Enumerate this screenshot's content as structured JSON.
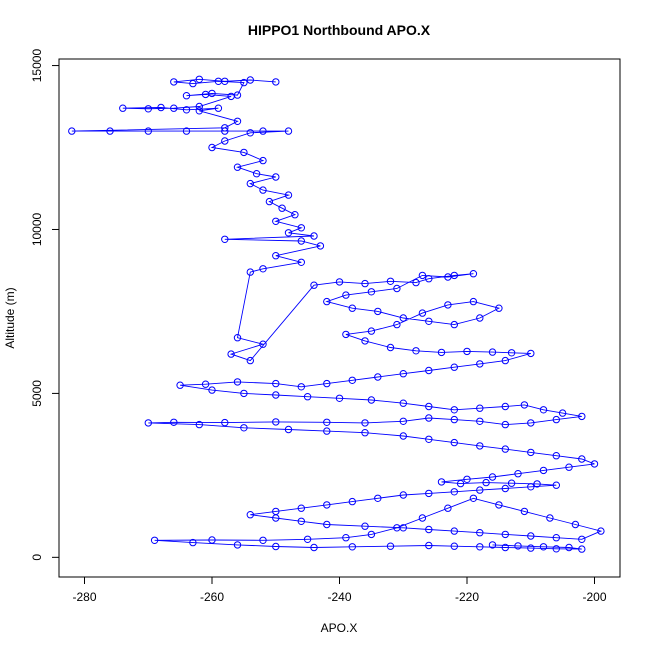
{
  "chart_data": {
    "type": "scatter",
    "title": "HIPPO1 Northbound APO.X",
    "xlabel": "APO.X",
    "ylabel": "Altitude (m)",
    "xlim": [
      -284,
      -196
    ],
    "ylim": [
      -600,
      15200
    ],
    "x_ticks": [
      -280,
      -260,
      -240,
      -220,
      -200
    ],
    "x_tick_labels": [
      "-280",
      "-260",
      "-240",
      "-220",
      "-200"
    ],
    "y_ticks": [
      0,
      5000,
      10000,
      15000
    ],
    "y_tick_labels": [
      "0",
      "5000",
      "10000",
      "15000"
    ],
    "grid": false,
    "legend": "none",
    "marker": "open-circle",
    "connect_points": true,
    "series": [
      {
        "color": "#0000ff",
        "points": [
          [
            -250.0,
            14500
          ],
          [
            -254.0,
            14560
          ],
          [
            -258.0,
            14520
          ],
          [
            -262.0,
            14580
          ],
          [
            -266.0,
            14500
          ],
          [
            -263.0,
            14450
          ],
          [
            -259.0,
            14520
          ],
          [
            -255.0,
            14480
          ],
          [
            -256.0,
            14100
          ],
          [
            -260.0,
            14150
          ],
          [
            -264.0,
            14080
          ],
          [
            -261.0,
            14120
          ],
          [
            -257.0,
            14060
          ],
          [
            -262.0,
            13750
          ],
          [
            -266.0,
            13700
          ],
          [
            -270.0,
            13680
          ],
          [
            -274.0,
            13700
          ],
          [
            -268.0,
            13720
          ],
          [
            -264.0,
            13650
          ],
          [
            -259.0,
            13700
          ],
          [
            -262.0,
            13620
          ],
          [
            -256.0,
            13300
          ],
          [
            -258.0,
            13100
          ],
          [
            -282.0,
            13000
          ],
          [
            -276.0,
            13000
          ],
          [
            -270.0,
            13000
          ],
          [
            -264.0,
            13000
          ],
          [
            -258.0,
            13000
          ],
          [
            -252.0,
            13000
          ],
          [
            -248.0,
            13000
          ],
          [
            -254.0,
            12950
          ],
          [
            -258.0,
            12700
          ],
          [
            -260.0,
            12500
          ],
          [
            -255.0,
            12350
          ],
          [
            -252.0,
            12100
          ],
          [
            -256.0,
            11900
          ],
          [
            -253.0,
            11700
          ],
          [
            -250.0,
            11600
          ],
          [
            -254.0,
            11400
          ],
          [
            -252.0,
            11200
          ],
          [
            -248.0,
            11050
          ],
          [
            -251.0,
            10850
          ],
          [
            -249.0,
            10650
          ],
          [
            -247.0,
            10450
          ],
          [
            -250.0,
            10250
          ],
          [
            -246.0,
            10050
          ],
          [
            -248.0,
            9900
          ],
          [
            -244.0,
            9800
          ],
          [
            -258.0,
            9700
          ],
          [
            -246.0,
            9650
          ],
          [
            -243.0,
            9500
          ],
          [
            -250.0,
            9200
          ],
          [
            -246.0,
            9000
          ],
          [
            -252.0,
            8800
          ],
          [
            -254.0,
            8700
          ],
          [
            -256.0,
            6700
          ],
          [
            -252.0,
            6500
          ],
          [
            -257.0,
            6200
          ],
          [
            -254.0,
            6000
          ],
          [
            -244.0,
            8300
          ],
          [
            -240.0,
            8400
          ],
          [
            -236.0,
            8350
          ],
          [
            -232.0,
            8420
          ],
          [
            -228.0,
            8380
          ],
          [
            -226.0,
            8500
          ],
          [
            -222.0,
            8600
          ],
          [
            -219.0,
            8650
          ],
          [
            -223.0,
            8550
          ],
          [
            -227.0,
            8600
          ],
          [
            -231.0,
            8200
          ],
          [
            -235.0,
            8100
          ],
          [
            -239.0,
            8000
          ],
          [
            -242.0,
            7800
          ],
          [
            -238.0,
            7600
          ],
          [
            -234.0,
            7500
          ],
          [
            -230.0,
            7300
          ],
          [
            -226.0,
            7200
          ],
          [
            -222.0,
            7100
          ],
          [
            -218.0,
            7300
          ],
          [
            -215.0,
            7600
          ],
          [
            -219.0,
            7800
          ],
          [
            -223.0,
            7700
          ],
          [
            -227.0,
            7450
          ],
          [
            -231.0,
            7100
          ],
          [
            -235.0,
            6900
          ],
          [
            -239.0,
            6800
          ],
          [
            -236.0,
            6600
          ],
          [
            -232.0,
            6400
          ],
          [
            -228.0,
            6300
          ],
          [
            -224.0,
            6250
          ],
          [
            -220.0,
            6280
          ],
          [
            -216.0,
            6260
          ],
          [
            -213.0,
            6240
          ],
          [
            -210.0,
            6220
          ],
          [
            -214.0,
            6000
          ],
          [
            -218.0,
            5900
          ],
          [
            -222.0,
            5800
          ],
          [
            -226.0,
            5700
          ],
          [
            -230.0,
            5600
          ],
          [
            -234.0,
            5500
          ],
          [
            -238.0,
            5400
          ],
          [
            -242.0,
            5300
          ],
          [
            -246.0,
            5200
          ],
          [
            -250.0,
            5300
          ],
          [
            -256.0,
            5350
          ],
          [
            -261.0,
            5280
          ],
          [
            -265.0,
            5250
          ],
          [
            -260.0,
            5100
          ],
          [
            -255.0,
            5000
          ],
          [
            -250.0,
            4950
          ],
          [
            -245.0,
            4900
          ],
          [
            -240.0,
            4850
          ],
          [
            -235.0,
            4800
          ],
          [
            -230.0,
            4700
          ],
          [
            -226.0,
            4600
          ],
          [
            -222.0,
            4500
          ],
          [
            -218.0,
            4550
          ],
          [
            -214.0,
            4600
          ],
          [
            -211.0,
            4650
          ],
          [
            -208.0,
            4500
          ],
          [
            -205.0,
            4400
          ],
          [
            -202.0,
            4300
          ],
          [
            -206.0,
            4200
          ],
          [
            -210.0,
            4100
          ],
          [
            -214.0,
            4050
          ],
          [
            -218.0,
            4150
          ],
          [
            -222.0,
            4200
          ],
          [
            -226.0,
            4250
          ],
          [
            -230.0,
            4150
          ],
          [
            -236.0,
            4100
          ],
          [
            -242.0,
            4120
          ],
          [
            -250.0,
            4130
          ],
          [
            -258.0,
            4110
          ],
          [
            -266.0,
            4120
          ],
          [
            -270.0,
            4100
          ],
          [
            -262.0,
            4050
          ],
          [
            -255.0,
            3950
          ],
          [
            -248.0,
            3900
          ],
          [
            -242.0,
            3850
          ],
          [
            -236.0,
            3800
          ],
          [
            -230.0,
            3700
          ],
          [
            -226.0,
            3600
          ],
          [
            -222.0,
            3500
          ],
          [
            -218.0,
            3400
          ],
          [
            -214.0,
            3300
          ],
          [
            -210.0,
            3200
          ],
          [
            -206.0,
            3100
          ],
          [
            -202.0,
            3000
          ],
          [
            -200.0,
            2850
          ],
          [
            -204.0,
            2750
          ],
          [
            -208.0,
            2650
          ],
          [
            -212.0,
            2550
          ],
          [
            -216.0,
            2450
          ],
          [
            -220.0,
            2380
          ],
          [
            -224.0,
            2300
          ],
          [
            -221.0,
            2250
          ],
          [
            -217.0,
            2280
          ],
          [
            -213.0,
            2260
          ],
          [
            -209.0,
            2240
          ],
          [
            -206.0,
            2200
          ],
          [
            -210.0,
            2150
          ],
          [
            -214.0,
            2100
          ],
          [
            -218.0,
            2050
          ],
          [
            -222.0,
            2000
          ],
          [
            -226.0,
            1950
          ],
          [
            -230.0,
            1900
          ],
          [
            -234.0,
            1800
          ],
          [
            -238.0,
            1700
          ],
          [
            -242.0,
            1600
          ],
          [
            -246.0,
            1500
          ],
          [
            -250.0,
            1400
          ],
          [
            -254.0,
            1300
          ],
          [
            -250.0,
            1200
          ],
          [
            -246.0,
            1100
          ],
          [
            -242.0,
            1000
          ],
          [
            -236.0,
            950
          ],
          [
            -230.0,
            900
          ],
          [
            -226.0,
            850
          ],
          [
            -222.0,
            800
          ],
          [
            -218.0,
            750
          ],
          [
            -214.0,
            700
          ],
          [
            -210.0,
            650
          ],
          [
            -206.0,
            600
          ],
          [
            -202.0,
            550
          ],
          [
            -199.0,
            800
          ],
          [
            -203.0,
            1000
          ],
          [
            -207.0,
            1200
          ],
          [
            -211.0,
            1400
          ],
          [
            -215.0,
            1600
          ],
          [
            -219.0,
            1800
          ],
          [
            -223.0,
            1500
          ],
          [
            -227.0,
            1200
          ],
          [
            -231.0,
            900
          ],
          [
            -235.0,
            700
          ],
          [
            -239.0,
            600
          ],
          [
            -245.0,
            550
          ],
          [
            -252.0,
            520
          ],
          [
            -260.0,
            530
          ],
          [
            -269.0,
            520
          ],
          [
            -263.0,
            450
          ],
          [
            -256.0,
            380
          ],
          [
            -250.0,
            330
          ],
          [
            -244.0,
            300
          ],
          [
            -238.0,
            320
          ],
          [
            -232.0,
            340
          ],
          [
            -226.0,
            360
          ],
          [
            -222.0,
            340
          ],
          [
            -218.0,
            320
          ],
          [
            -214.0,
            300
          ],
          [
            -210.0,
            280
          ],
          [
            -206.0,
            260
          ],
          [
            -202.0,
            250
          ],
          [
            -204.0,
            300
          ],
          [
            -208.0,
            320
          ],
          [
            -212.0,
            350
          ],
          [
            -216.0,
            380
          ]
        ]
      }
    ]
  }
}
